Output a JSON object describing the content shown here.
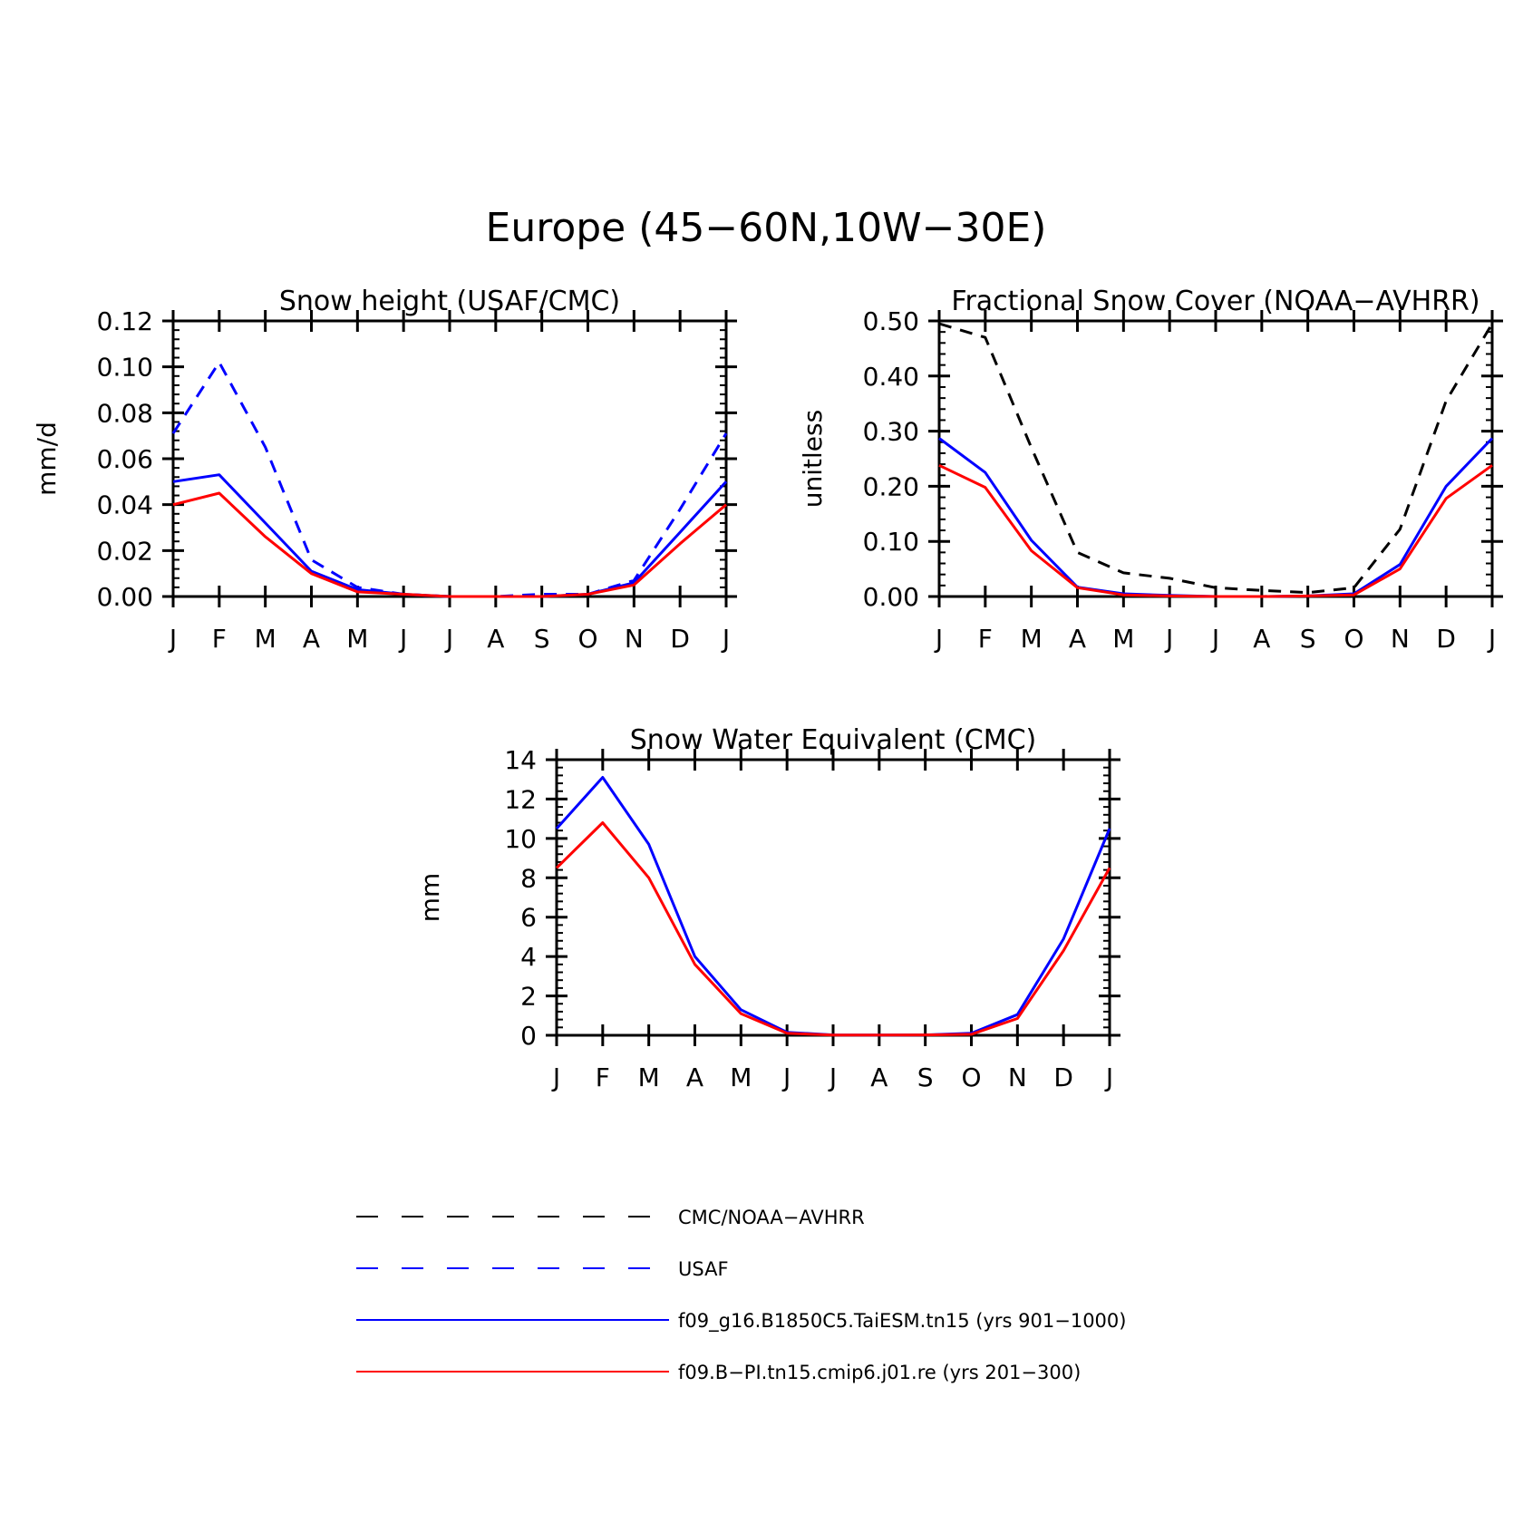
{
  "figure_title": "Europe (45−60N,10W−30E)",
  "colors": {
    "black": "#000000",
    "blue": "#0000ff",
    "red": "#ff0000"
  },
  "legend": [
    {
      "label": "CMC/NOAA−AVHRR",
      "color": "#000000",
      "dash": true
    },
    {
      "label": "USAF",
      "color": "#0000ff",
      "dash": true
    },
    {
      "label": "f09_g16.B1850C5.TaiESM.tn15 (yrs 901−1000)",
      "color": "#0000ff",
      "dash": false
    },
    {
      "label": "f09.B−PI.tn15.cmip6.j01.re (yrs 201−300)",
      "color": "#ff0000",
      "dash": false
    }
  ],
  "chart_data": [
    {
      "type": "line",
      "title": "Snow height (USAF/CMC)",
      "ylabel": "mm/d",
      "xlabel": "",
      "categories": [
        "J",
        "F",
        "M",
        "A",
        "M",
        "J",
        "J",
        "A",
        "S",
        "O",
        "N",
        "D",
        "J"
      ],
      "ylim": [
        0,
        0.12
      ],
      "yticks": [
        "0.00",
        "0.02",
        "0.04",
        "0.06",
        "0.08",
        "0.10",
        "0.12"
      ],
      "yticks_values": [
        0,
        0.02,
        0.04,
        0.06,
        0.08,
        0.1,
        0.12
      ],
      "series": [
        {
          "color": "#000000",
          "dash": true,
          "values": [
            0,
            0,
            0,
            0,
            0,
            0,
            0,
            0,
            0,
            0,
            0,
            0,
            0
          ]
        },
        {
          "color": "#0000ff",
          "dash": true,
          "values": [
            0.071,
            0.102,
            0.065,
            0.016,
            0.004,
            0.001,
            0,
            0,
            0.001,
            0.001,
            0.007,
            0.038,
            0.071
          ]
        },
        {
          "color": "#0000ff",
          "dash": false,
          "values": [
            0.05,
            0.053,
            0.032,
            0.011,
            0.003,
            0.001,
            0,
            0,
            0,
            0.001,
            0.006,
            0.028,
            0.05
          ]
        },
        {
          "color": "#ff0000",
          "dash": false,
          "values": [
            0.04,
            0.045,
            0.026,
            0.01,
            0.002,
            0.001,
            0,
            0,
            0,
            0.001,
            0.005,
            0.023,
            0.04
          ]
        }
      ]
    },
    {
      "type": "line",
      "title": "Fractional Snow Cover (NOAA−AVHRR)",
      "ylabel": "unitless",
      "xlabel": "",
      "categories": [
        "J",
        "F",
        "M",
        "A",
        "M",
        "J",
        "J",
        "A",
        "S",
        "O",
        "N",
        "D",
        "J"
      ],
      "ylim": [
        0,
        0.5
      ],
      "yticks": [
        "0.00",
        "0.10",
        "0.20",
        "0.30",
        "0.40",
        "0.50"
      ],
      "yticks_values": [
        0,
        0.1,
        0.2,
        0.3,
        0.4,
        0.5
      ],
      "series": [
        {
          "color": "#000000",
          "dash": true,
          "values": [
            0.495,
            0.47,
            0.27,
            0.08,
            0.043,
            0.033,
            0.016,
            0.011,
            0.007,
            0.016,
            0.122,
            0.355,
            0.495
          ]
        },
        {
          "color": "#0000ff",
          "dash": false,
          "values": [
            0.287,
            0.225,
            0.102,
            0.017,
            0.005,
            0.002,
            0,
            0,
            0.001,
            0.005,
            0.058,
            0.2,
            0.287
          ]
        },
        {
          "color": "#ff0000",
          "dash": false,
          "values": [
            0.238,
            0.198,
            0.083,
            0.016,
            0.003,
            0.001,
            0,
            0,
            0.001,
            0.003,
            0.05,
            0.178,
            0.238
          ]
        }
      ]
    },
    {
      "type": "line",
      "title": "Snow Water Equivalent (CMC)",
      "ylabel": "mm",
      "xlabel": "",
      "categories": [
        "J",
        "F",
        "M",
        "A",
        "M",
        "J",
        "J",
        "A",
        "S",
        "O",
        "N",
        "D",
        "J"
      ],
      "ylim": [
        0,
        14
      ],
      "yticks": [
        "0",
        "2",
        "4",
        "6",
        "8",
        "10",
        "12",
        "14"
      ],
      "yticks_values": [
        0,
        2,
        4,
        6,
        8,
        10,
        12,
        14
      ],
      "series": [
        {
          "color": "#0000ff",
          "dash": false,
          "values": [
            10.5,
            13.1,
            9.7,
            4.0,
            1.3,
            0.15,
            0.02,
            0.01,
            0.02,
            0.1,
            1.05,
            4.9,
            10.5
          ]
        },
        {
          "color": "#ff0000",
          "dash": false,
          "values": [
            8.5,
            10.8,
            8.0,
            3.6,
            1.1,
            0.1,
            0.01,
            0.01,
            0.02,
            0.05,
            0.85,
            4.3,
            8.5
          ]
        }
      ]
    }
  ]
}
